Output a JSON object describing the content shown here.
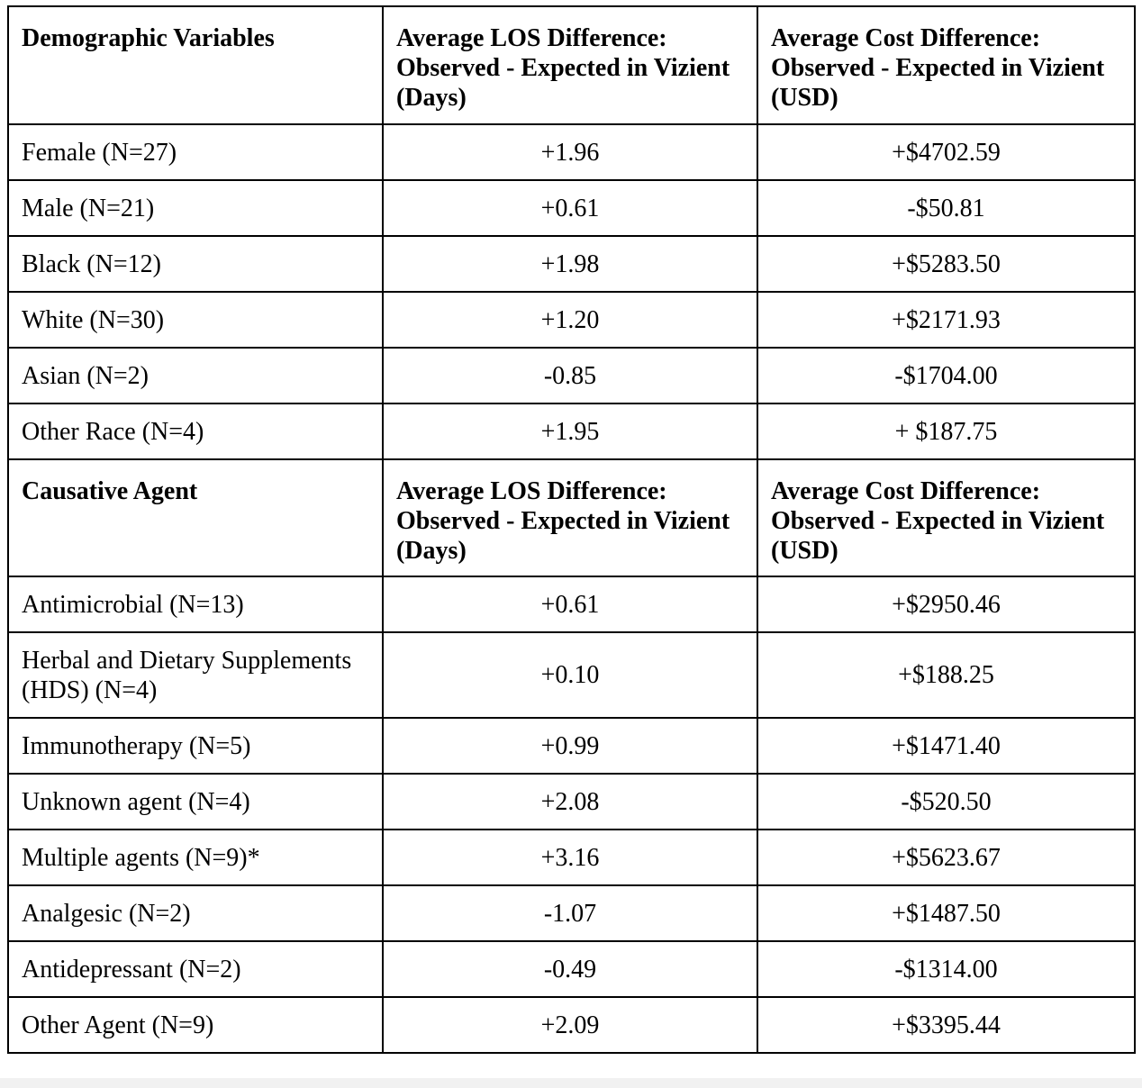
{
  "demographics": {
    "headers": [
      "Demographic Variables",
      "Average LOS Difference: Observed - Expected in Vizient (Days)",
      "Average Cost Difference: Observed - Expected in Vizient (USD)"
    ],
    "rows": [
      {
        "label": "Female (N=27)",
        "los": "+1.96",
        "cost": "+$4702.59"
      },
      {
        "label": "Male (N=21)",
        "los": "+0.61",
        "cost": "-$50.81"
      },
      {
        "label": "Black (N=12)",
        "los": "+1.98",
        "cost": "+$5283.50"
      },
      {
        "label": "White (N=30)",
        "los": "+1.20",
        "cost": "+$2171.93"
      },
      {
        "label": "Asian (N=2)",
        "los": "-0.85",
        "cost": "-$1704.00"
      },
      {
        "label": "Other Race (N=4)",
        "los": "+1.95",
        "cost": "+ $187.75"
      }
    ]
  },
  "agents": {
    "headers": [
      "Causative Agent",
      "Average LOS Difference: Observed - Expected in Vizient (Days)",
      "Average Cost Difference: Observed - Expected in Vizient (USD)"
    ],
    "rows": [
      {
        "label": "Antimicrobial (N=13)",
        "los": "+0.61",
        "cost": "+$2950.46"
      },
      {
        "label": "Herbal and Dietary Supplements (HDS) (N=4)",
        "los": "+0.10",
        "cost": "+$188.25"
      },
      {
        "label": "Immunotherapy (N=5)",
        "los": "+0.99",
        "cost": "+$1471.40"
      },
      {
        "label": "Unknown agent (N=4)",
        "los": "+2.08",
        "cost": "-$520.50"
      },
      {
        "label": "Multiple agents (N=9)*",
        "los": "+3.16",
        "cost": "+$5623.67"
      },
      {
        "label": "Analgesic (N=2)",
        "los": "-1.07",
        "cost": "+$1487.50"
      },
      {
        "label": "Antidepressant (N=2)",
        "los": "-0.49",
        "cost": "-$1314.00"
      },
      {
        "label": "Other Agent (N=9)",
        "los": "+2.09",
        "cost": "+$3395.44"
      }
    ]
  }
}
